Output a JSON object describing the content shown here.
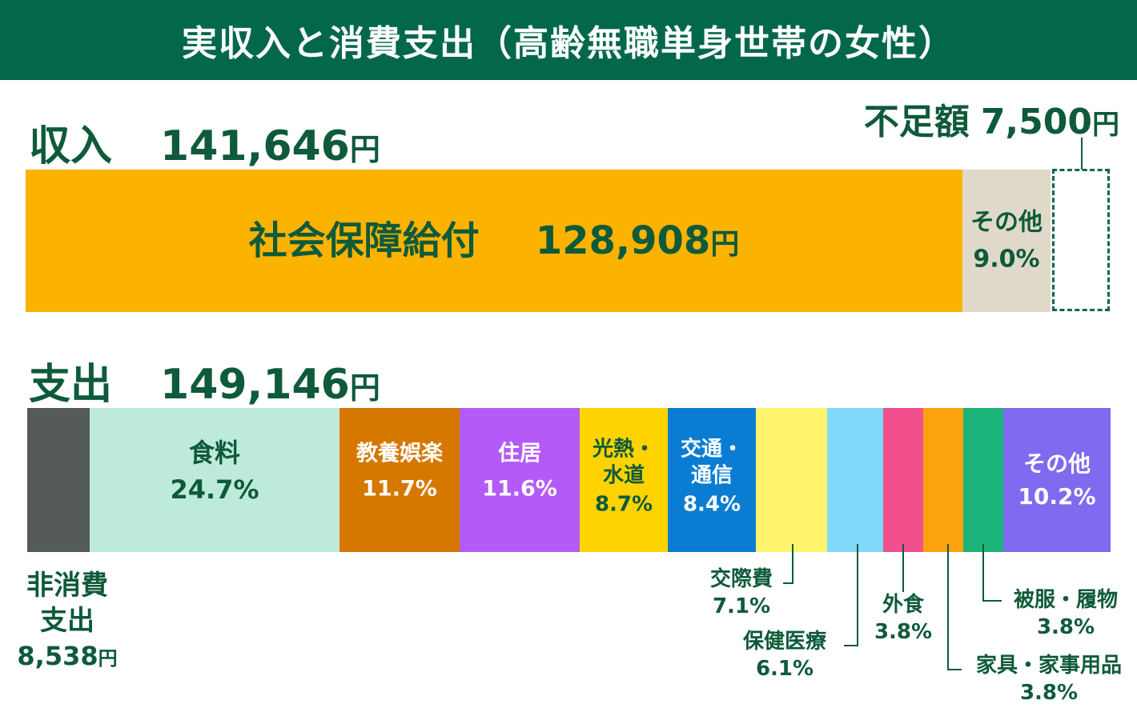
{
  "title": "実収入と消費支出（高齢無職単身世帯の女性）",
  "income": {
    "label": "収入",
    "value": "141,646",
    "unit": "円",
    "social_security": {
      "label": "社会保障給付",
      "value": "128,908",
      "unit": "円"
    },
    "other": {
      "label": "その他",
      "pct": "9.0%"
    }
  },
  "deficit": {
    "label": "不足額",
    "value": "7,500",
    "unit": "円"
  },
  "expense": {
    "label": "支出",
    "value": "149,146",
    "unit": "円",
    "non_consumption": {
      "line1": "非消費",
      "line2": "支出",
      "value": "8,538",
      "unit": "円"
    },
    "food": {
      "label": "食料",
      "pct": "24.7%"
    },
    "recreation": {
      "label": "教養娯楽",
      "pct": "11.7%"
    },
    "housing": {
      "label": "住居",
      "pct": "11.6%"
    },
    "utilities": {
      "line1": "光熱・",
      "line2": "水道",
      "pct": "8.7%"
    },
    "transport": {
      "line1": "交通・",
      "line2": "通信",
      "pct": "8.4%"
    },
    "social": {
      "label": "交際費",
      "pct": "7.1%"
    },
    "medical": {
      "label": "保健医療",
      "pct": "6.1%"
    },
    "eating_out": {
      "label": "外食",
      "pct": "3.8%"
    },
    "furniture": {
      "label": "家具・家事用品",
      "pct": "3.8%"
    },
    "clothing": {
      "label": "被服・履物",
      "pct": "3.8%"
    },
    "other": {
      "label": "その他",
      "pct": "10.2%"
    }
  },
  "chart_data": {
    "type": "bar",
    "title": "実収入と消費支出（高齢無職単身世帯の女性）",
    "series": [
      {
        "name": "収入",
        "total_yen": 141646,
        "segments": [
          {
            "label": "社会保障給付",
            "value_yen": 128908,
            "color": "#fcb300"
          },
          {
            "label": "その他",
            "pct": 9.0,
            "color": "#e0d9c9"
          }
        ]
      },
      {
        "name": "支出",
        "total_yen": 149146,
        "segments": [
          {
            "label": "非消費支出",
            "value_yen": 8538,
            "color": "#545a58"
          },
          {
            "label": "食料",
            "pct": 24.7,
            "color": "#bdeadb"
          },
          {
            "label": "教養娯楽",
            "pct": 11.7,
            "color": "#d67800"
          },
          {
            "label": "住居",
            "pct": 11.6,
            "color": "#b45bf7"
          },
          {
            "label": "光熱・水道",
            "pct": 8.7,
            "color": "#fed300"
          },
          {
            "label": "交通・通信",
            "pct": 8.4,
            "color": "#0a7dd3"
          },
          {
            "label": "交際費",
            "pct": 7.1,
            "color": "#fff46c"
          },
          {
            "label": "保健医療",
            "pct": 6.1,
            "color": "#7fd8f9"
          },
          {
            "label": "外食",
            "pct": 3.8,
            "color": "#f24f8d"
          },
          {
            "label": "家具・家事用品",
            "pct": 3.8,
            "color": "#fca20f"
          },
          {
            "label": "被服・履物",
            "pct": 3.8,
            "color": "#1ab47b"
          },
          {
            "label": "その他",
            "pct": 10.2,
            "color": "#7f6af0"
          }
        ]
      }
    ],
    "deficit": {
      "label": "不足額",
      "value_yen": 7500
    }
  }
}
